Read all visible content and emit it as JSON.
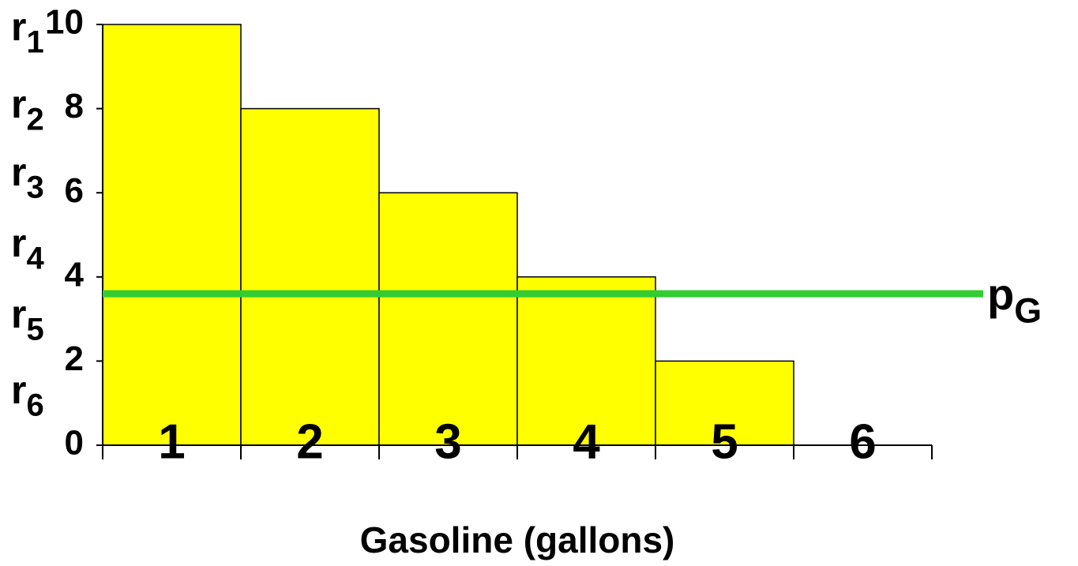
{
  "chart_data": {
    "type": "bar",
    "categories": [
      "1",
      "2",
      "3",
      "4",
      "5",
      "6"
    ],
    "values": [
      10,
      8,
      6,
      4,
      2,
      0
    ],
    "color": "#ffff00",
    "ylim": [
      0,
      10
    ],
    "yticks": [
      0,
      2,
      4,
      6,
      8,
      10
    ],
    "x_label": "Gasoline (gallons)",
    "r_labels": [
      {
        "base": "r",
        "sub": "1"
      },
      {
        "base": "r",
        "sub": "2"
      },
      {
        "base": "r",
        "sub": "3"
      },
      {
        "base": "r",
        "sub": "4"
      },
      {
        "base": "r",
        "sub": "5"
      },
      {
        "base": "r",
        "sub": "6"
      }
    ],
    "price_line": {
      "value": 3.6,
      "color": "#33cc33",
      "label": {
        "base": "p",
        "sub": "G"
      }
    }
  }
}
